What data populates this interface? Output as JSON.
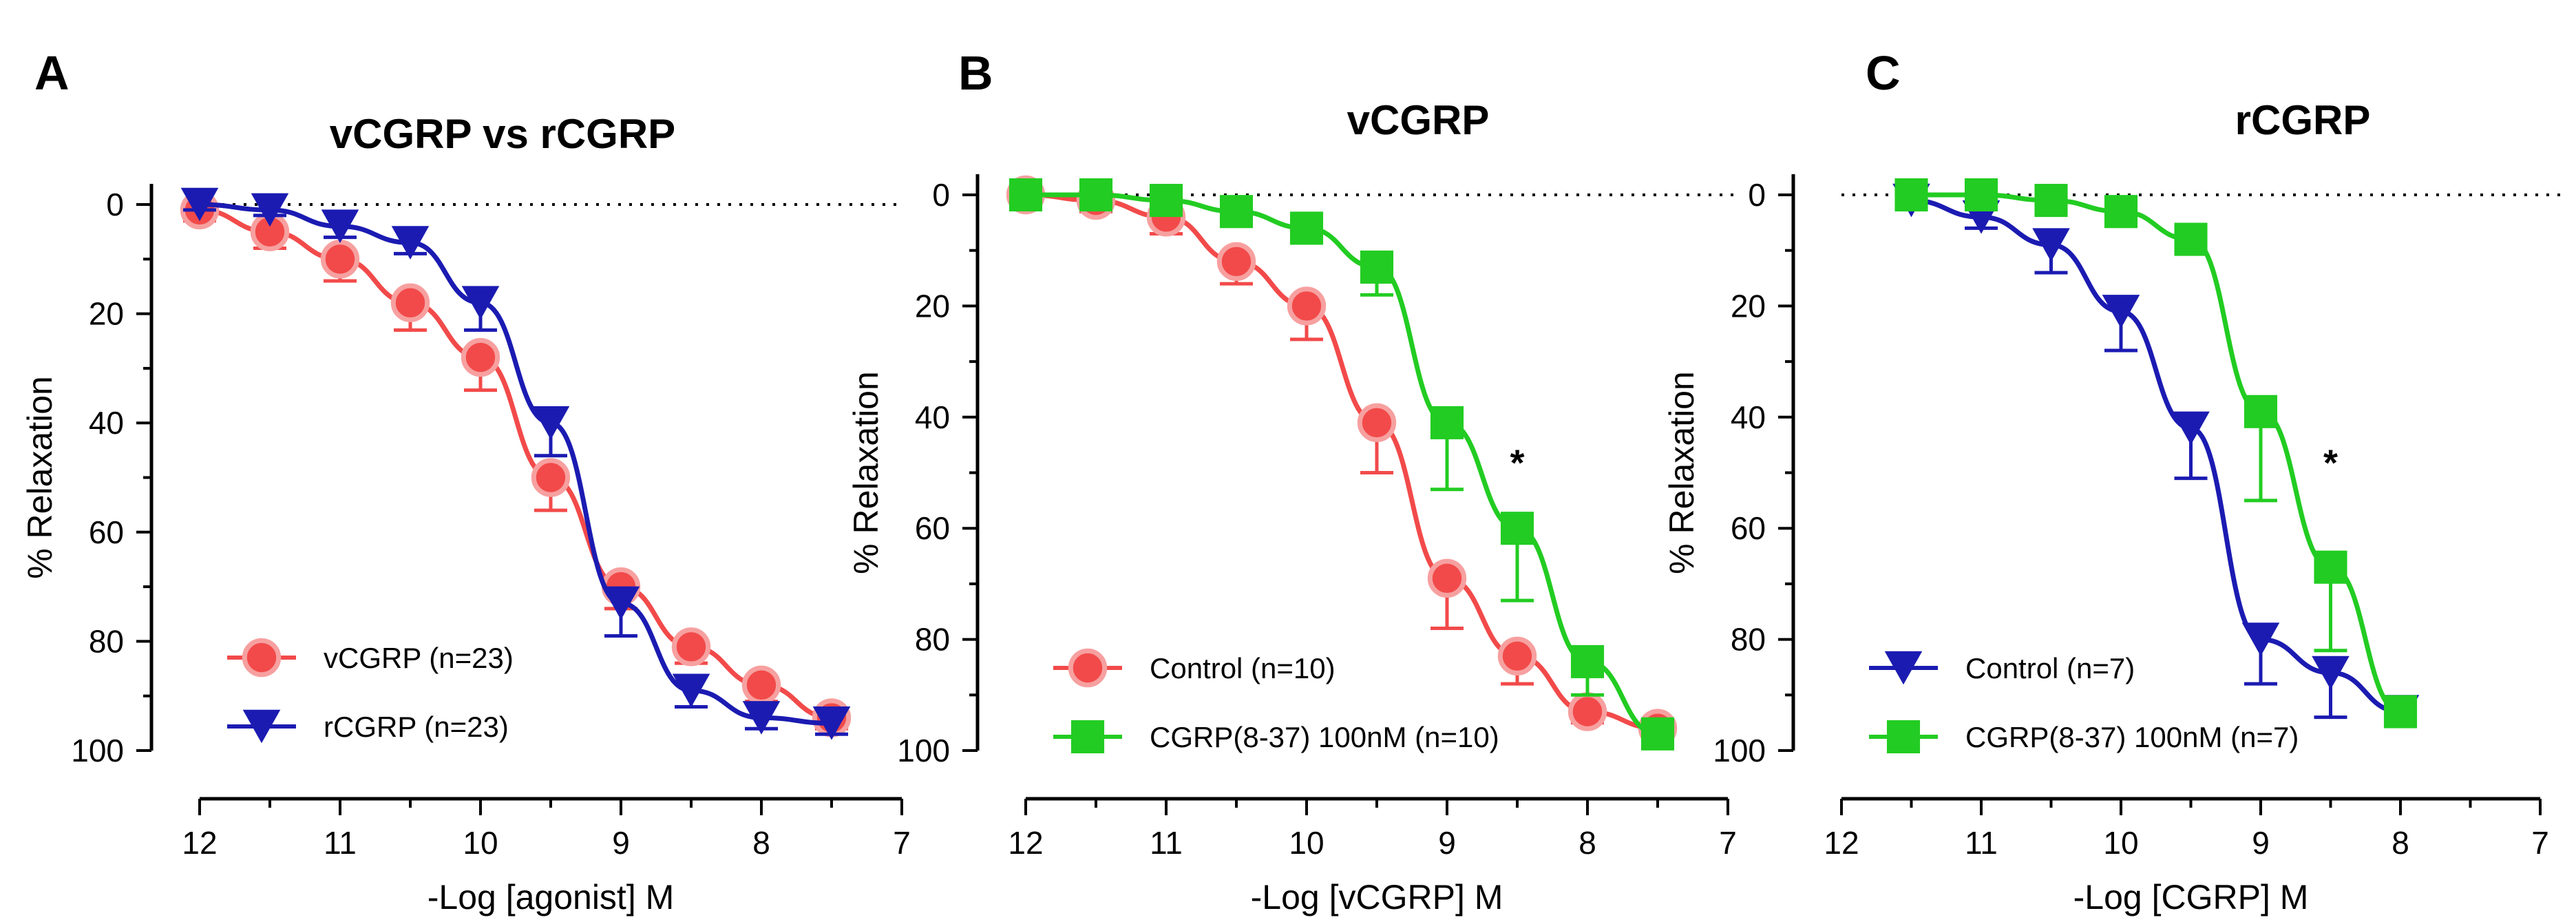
{
  "colors": {
    "red": "#f24a4a",
    "blue": "#1b1bb2",
    "green": "#22cc22",
    "axis": "#000000"
  },
  "chart_data": [
    {
      "panel": "A",
      "type": "line",
      "title": "vCGRP vs rCGRP",
      "xlabel": "-Log [agonist] M",
      "ylabel": "% Relaxation",
      "xlim": [
        12,
        7
      ],
      "ylim": [
        0,
        100
      ],
      "y_inverted": true,
      "x_ticks": [
        12,
        11,
        10,
        9,
        8,
        7
      ],
      "y_ticks": [
        0,
        20,
        40,
        60,
        80,
        100
      ],
      "legend_position": "bottom-left",
      "series": [
        {
          "name": "vCGRP (n=23)",
          "color": "red",
          "marker": "circle",
          "x": [
            12,
            11.5,
            11,
            10.5,
            10,
            9.5,
            9,
            8.5,
            8,
            7.5
          ],
          "y": [
            1,
            5,
            10,
            18,
            28,
            50,
            70,
            81,
            88,
            94
          ],
          "err": [
            2,
            3,
            4,
            5,
            6,
            6,
            4,
            3,
            3,
            2
          ]
        },
        {
          "name": "rCGRP (n=23)",
          "color": "blue",
          "marker": "triangle-down",
          "x": [
            12,
            11.5,
            11,
            10.5,
            10,
            9.5,
            9,
            8.5,
            8,
            7.5
          ],
          "y": [
            0,
            1,
            4,
            7,
            18,
            40,
            73,
            89,
            94,
            95
          ],
          "err": [
            1,
            1,
            2,
            2,
            5,
            6,
            6,
            3,
            2,
            2
          ]
        }
      ],
      "annotations": []
    },
    {
      "panel": "B",
      "type": "line",
      "title": "vCGRP",
      "xlabel": "-Log [vCGRP] M",
      "ylabel": "% Relaxation",
      "xlim": [
        12,
        7
      ],
      "ylim": [
        0,
        100
      ],
      "y_inverted": true,
      "x_ticks": [
        12,
        11,
        10,
        9,
        8,
        7
      ],
      "y_ticks": [
        0,
        20,
        40,
        60,
        80,
        100
      ],
      "legend_position": "bottom-left",
      "series": [
        {
          "name": "Control (n=10)",
          "color": "red",
          "marker": "circle",
          "x": [
            12,
            11.5,
            11,
            10.5,
            10,
            9.5,
            9,
            8.5,
            8,
            7.5
          ],
          "y": [
            0,
            1,
            4,
            12,
            20,
            41,
            69,
            83,
            93,
            96
          ],
          "err": [
            1,
            2,
            3,
            4,
            6,
            9,
            9,
            5,
            2,
            2
          ]
        },
        {
          "name": "CGRP(8-37) 100nM (n=10)",
          "color": "green",
          "marker": "square",
          "x": [
            12,
            11.5,
            11,
            10.5,
            10,
            9.5,
            9,
            8.5,
            8,
            7.5
          ],
          "y": [
            0,
            0,
            1,
            3,
            6,
            13,
            41,
            60,
            84,
            97
          ],
          "err": [
            1,
            1,
            1,
            2,
            2,
            5,
            12,
            13,
            6,
            2
          ]
        }
      ],
      "annotations": [
        {
          "text": "*",
          "x": 8.5,
          "y": 48
        }
      ]
    },
    {
      "panel": "C",
      "type": "line",
      "title": "rCGRP",
      "xlabel": "-Log [CGRP] M",
      "ylabel": "% Relaxation",
      "xlim": [
        12,
        7
      ],
      "ylim": [
        0,
        100
      ],
      "y_inverted": true,
      "x_ticks": [
        12,
        11,
        10,
        9,
        8,
        7
      ],
      "y_ticks": [
        0,
        20,
        40,
        60,
        80,
        100
      ],
      "y_tick_labels": [
        "0",
        "20",
        "40",
        "60",
        "80",
        "100"
      ],
      "legend_position": "bottom-left",
      "series": [
        {
          "name": "Control (n=7)",
          "color": "blue",
          "marker": "triangle-down",
          "x": [
            11.5,
            11,
            10.5,
            10,
            9.5,
            9,
            8.5,
            8
          ],
          "y": [
            1,
            4,
            9,
            21,
            42,
            80,
            86,
            93
          ],
          "err": [
            1,
            2,
            5,
            7,
            9,
            8,
            8,
            2
          ]
        },
        {
          "name": "CGRP(8-37) 100nM (n=7)",
          "color": "green",
          "marker": "square",
          "x": [
            11.5,
            11,
            10.5,
            10,
            9.5,
            9,
            8.5,
            8
          ],
          "y": [
            0,
            0,
            1,
            3,
            8,
            39,
            67,
            93
          ],
          "err": [
            1,
            1,
            1,
            2,
            2,
            16,
            15,
            2
          ]
        }
      ],
      "annotations": [
        {
          "text": "*",
          "x": 8.5,
          "y": 48
        }
      ]
    }
  ]
}
